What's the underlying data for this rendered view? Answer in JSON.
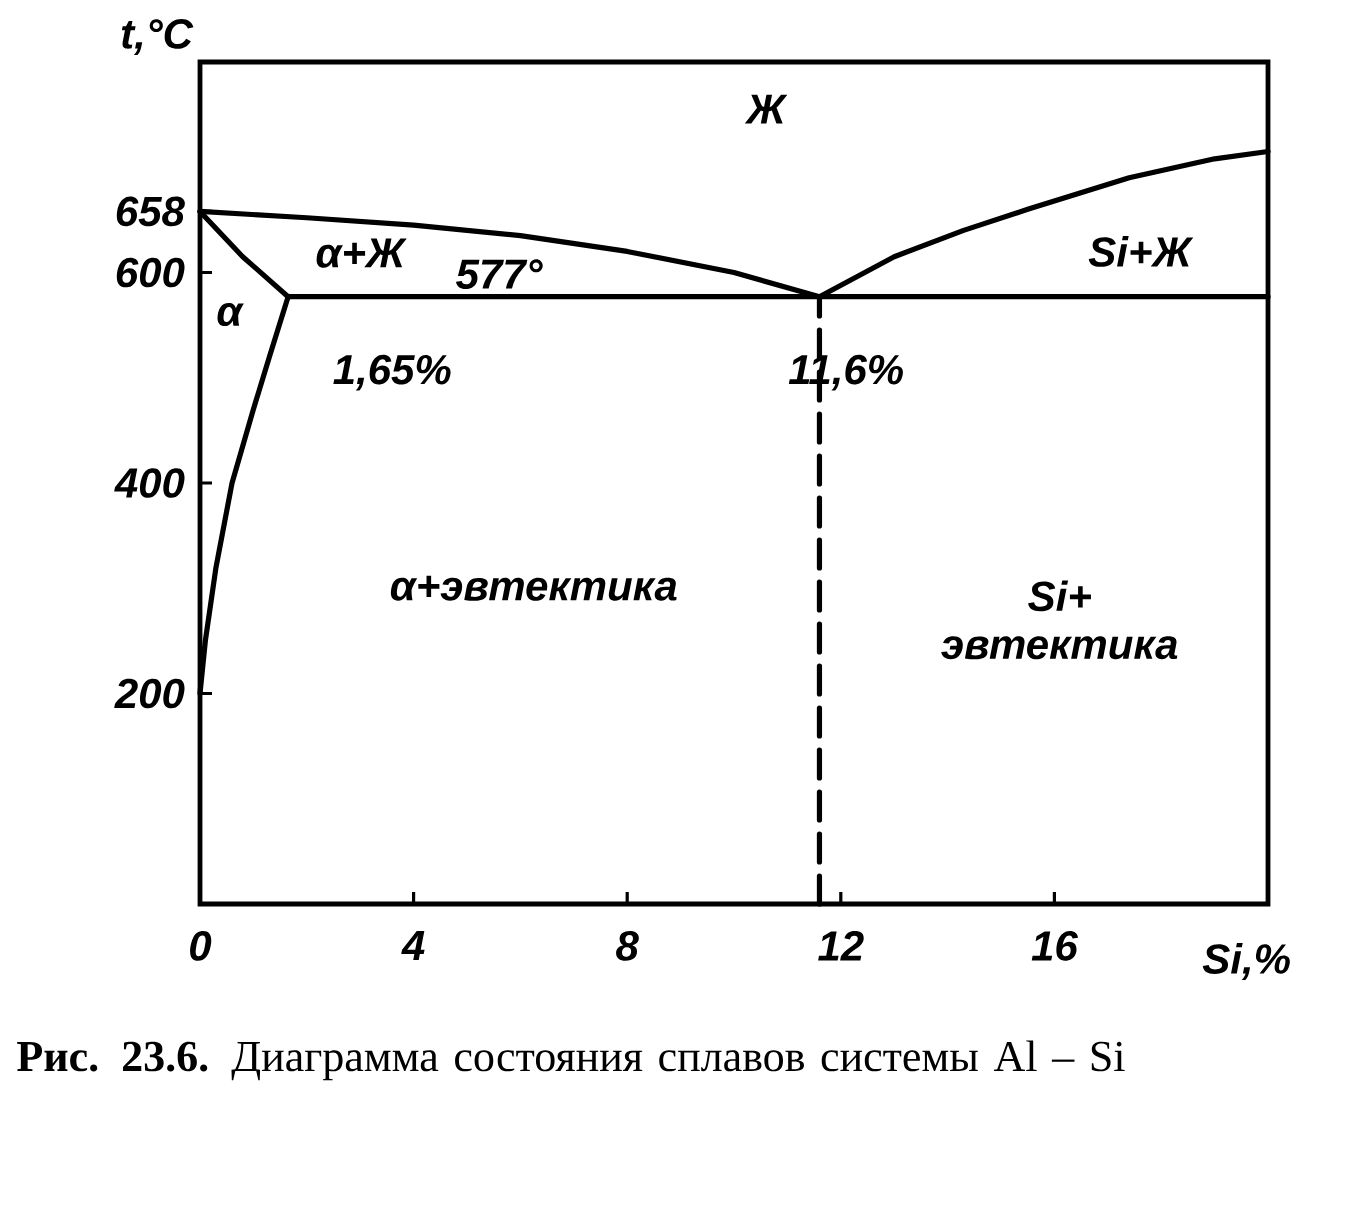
{
  "chart_data": {
    "type": "line",
    "title": "**Рис. 23.6.** Диаграмма состояния сплавов системы Al – Si",
    "xlabel": "Si,%",
    "ylabel": "t,°C",
    "xlim": [
      0,
      20
    ],
    "ylim": [
      0,
      800
    ],
    "xticks": [
      0,
      4,
      8,
      12,
      16
    ],
    "yticks": [
      200,
      400,
      600,
      658
    ],
    "series": [
      {
        "color": "#000000",
        "x": [
          0,
          2,
          4,
          6,
          8,
          10,
          11.6
        ],
        "values": [
          658,
          652,
          645,
          635,
          620,
          600,
          577
        ]
      },
      {
        "color": "#000000",
        "x": [
          11.6,
          13,
          14.3,
          15.5,
          17.4,
          19,
          20
        ],
        "values": [
          577,
          615,
          640,
          660,
          690,
          708,
          715
        ]
      },
      {
        "color": "#000000",
        "x": [
          1.65,
          20
        ],
        "values": [
          577,
          577
        ]
      },
      {
        "color": "#000000",
        "x": [
          0,
          0.8,
          1.65
        ],
        "values": [
          658,
          615,
          577
        ]
      },
      {
        "color": "#000000",
        "x": [
          1.65,
          1.3,
          1.0,
          0.6,
          0.3,
          0.1,
          0
        ],
        "values": [
          577,
          520,
          470,
          400,
          320,
          250,
          200
        ]
      },
      {
        "color": "#000000",
        "x": [
          11.6,
          11.6
        ],
        "values": [
          0,
          577
        ],
        "line_style": "dashed"
      }
    ],
    "annotations": [
      "Ж",
      "α+Ж",
      "577°",
      "α",
      "1,65%",
      "11,6%",
      "Si+Ж",
      "α+эвтектика",
      "Si+ эвтектика"
    ]
  }
}
